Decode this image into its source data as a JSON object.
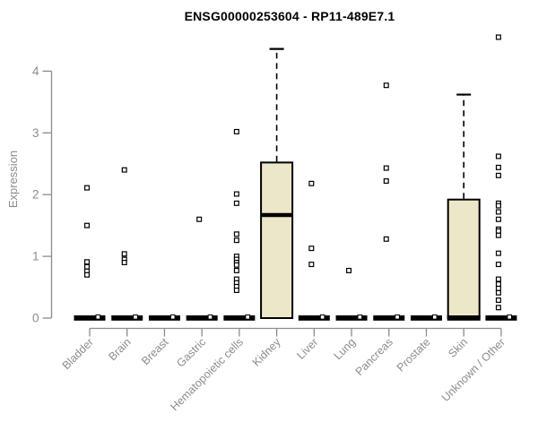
{
  "chart_data": {
    "type": "boxplot",
    "title": "ENSG00000253604 - RP11-489E7.1",
    "xlabel": "",
    "ylabel": "Expression",
    "ylim": [
      0,
      4.6
    ],
    "yticks": [
      0,
      1,
      2,
      3,
      4
    ],
    "grid": false,
    "legend": "none",
    "colors": {
      "box_fill": "#EDE7CA",
      "box_stroke": "#000000",
      "axis": "#8c8c8c",
      "tick_label": "#8c8c8c",
      "title": "#000000",
      "background": "#FFFFFF"
    },
    "categories": [
      {
        "label": "Bladder",
        "box": null,
        "zero_bar": true,
        "points": [
          2.11,
          1.5,
          0.91,
          0.83,
          0.76,
          0.7
        ]
      },
      {
        "label": "Brain",
        "box": null,
        "zero_bar": true,
        "points": [
          2.4,
          1.04,
          0.95,
          0.9
        ]
      },
      {
        "label": "Breast",
        "box": null,
        "zero_bar": true,
        "points": []
      },
      {
        "label": "Gastric",
        "box": null,
        "zero_bar": true,
        "points": [
          1.6
        ]
      },
      {
        "label": "Hematopoietic cells",
        "box": null,
        "zero_bar": true,
        "points": [
          3.02,
          2.01,
          1.86,
          1.36,
          1.26,
          1.0,
          0.95,
          0.9,
          0.86,
          0.77,
          0.63,
          0.57,
          0.51,
          0.45
        ]
      },
      {
        "label": "Kidney",
        "box": {
          "q1": 0,
          "median": 1.67,
          "q3": 2.52,
          "whisker_low": 0,
          "whisker_high": 4.36
        },
        "zero_bar": false,
        "points": []
      },
      {
        "label": "Liver",
        "box": null,
        "zero_bar": true,
        "points": [
          2.18,
          1.13,
          0.87
        ]
      },
      {
        "label": "Lung",
        "box": null,
        "zero_bar": true,
        "points": [
          0.77
        ]
      },
      {
        "label": "Pancreas",
        "box": null,
        "zero_bar": true,
        "points": [
          3.77,
          2.43,
          2.22,
          1.28
        ]
      },
      {
        "label": "Prostate",
        "box": null,
        "zero_bar": true,
        "points": []
      },
      {
        "label": "Skin",
        "box": {
          "q1": 0,
          "median": 0,
          "q3": 1.92,
          "whisker_low": 0,
          "whisker_high": 3.62
        },
        "zero_bar": false,
        "points": []
      },
      {
        "label": "Unknown / Other",
        "box": null,
        "zero_bar": true,
        "points": [
          4.55,
          2.62,
          2.44,
          2.31,
          1.86,
          1.82,
          1.72,
          1.6,
          1.44,
          1.41,
          1.34,
          1.05,
          0.87,
          0.63,
          0.55,
          0.48,
          0.41,
          0.29,
          0.17
        ]
      }
    ]
  }
}
